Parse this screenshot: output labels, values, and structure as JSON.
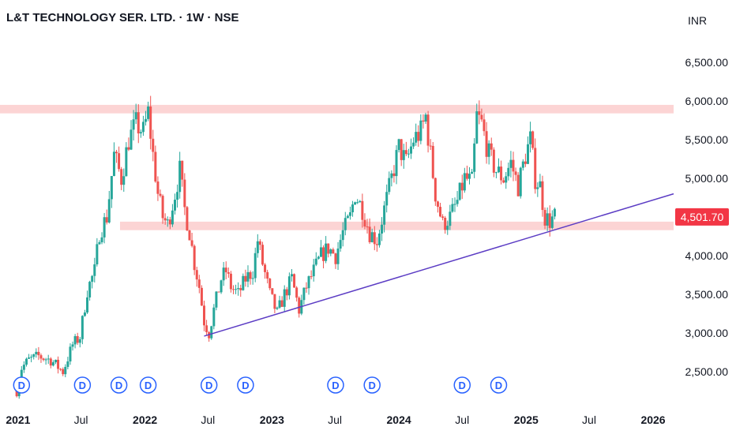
{
  "header": {
    "symbol": "L&T TECHNOLOGY SER. LTD.",
    "separator": "·",
    "interval": "1W",
    "exchange": "NSE",
    "currency": "INR"
  },
  "colors": {
    "up": "#26a69a",
    "down": "#ef5350",
    "zone": "#fcd4d4",
    "trendline": "#5b3cc4",
    "label_bg": "#f23645",
    "dividend": "#2962ff",
    "text": "#131722"
  },
  "chart_data": {
    "type": "candlestick",
    "title": "L&T TECHNOLOGY SER. LTD. · 1W · NSE",
    "x_axis": {
      "labels": [
        {
          "label": "2021",
          "date": "2021-01-01"
        },
        {
          "label": "Jul",
          "date": "2021-07-01"
        },
        {
          "label": "2022",
          "date": "2022-01-01"
        },
        {
          "label": "Jul",
          "date": "2022-07-01"
        },
        {
          "label": "2023",
          "date": "2023-01-01"
        },
        {
          "label": "Jul",
          "date": "2023-07-01"
        },
        {
          "label": "2024",
          "date": "2024-01-01"
        },
        {
          "label": "Jul",
          "date": "2024-07-01"
        },
        {
          "label": "2025",
          "date": "2025-01-01"
        },
        {
          "label": "Jul",
          "date": "2025-07-01"
        },
        {
          "label": "2026",
          "date": "2026-01-01"
        }
      ],
      "range": [
        "2020-11-10",
        "2026-03-01"
      ]
    },
    "y_axis": {
      "range": [
        2000,
        7000
      ],
      "ticks": [
        {
          "value": 2500,
          "label": "2,500.00"
        },
        {
          "value": 3000,
          "label": "3,000.00"
        },
        {
          "value": 3500,
          "label": "3,500.00"
        },
        {
          "value": 4000,
          "label": "4,000.00"
        },
        {
          "value": 4500,
          "label": "4,500.00"
        },
        {
          "value": 5000,
          "label": "5,000.00"
        },
        {
          "value": 5500,
          "label": "5,500.00"
        },
        {
          "value": 6000,
          "label": "6,000.00"
        },
        {
          "value": 6500,
          "label": "6,500.00"
        }
      ]
    },
    "price_path": [
      [
        "2020-12-28",
        2250
      ],
      [
        "2021-01-11",
        2550
      ],
      [
        "2021-02-01",
        2650
      ],
      [
        "2021-03-01",
        2700
      ],
      [
        "2021-04-05",
        2650
      ],
      [
        "2021-05-10",
        2500
      ],
      [
        "2021-06-07",
        2850
      ],
      [
        "2021-06-28",
        2950
      ],
      [
        "2021-07-19",
        3550
      ],
      [
        "2021-08-09",
        3800
      ],
      [
        "2021-08-23",
        4300
      ],
      [
        "2021-09-13",
        4500
      ],
      [
        "2021-10-04",
        5300
      ],
      [
        "2021-10-25",
        5000
      ],
      [
        "2021-11-15",
        5500
      ],
      [
        "2021-12-06",
        5700
      ],
      [
        "2021-12-27",
        5600
      ],
      [
        "2022-01-10",
        5850
      ],
      [
        "2022-01-24",
        5300
      ],
      [
        "2022-02-07",
        4800
      ],
      [
        "2022-02-21",
        4500
      ],
      [
        "2022-03-07",
        4400
      ],
      [
        "2022-03-28",
        4800
      ],
      [
        "2022-04-11",
        5100
      ],
      [
        "2022-04-25",
        4600
      ],
      [
        "2022-05-09",
        4300
      ],
      [
        "2022-05-23",
        3900
      ],
      [
        "2022-06-06",
        3600
      ],
      [
        "2022-06-20",
        3150
      ],
      [
        "2022-07-04",
        3000
      ],
      [
        "2022-07-18",
        3300
      ],
      [
        "2022-08-08",
        3700
      ],
      [
        "2022-08-22",
        3800
      ],
      [
        "2022-09-05",
        3600
      ],
      [
        "2022-09-26",
        3500
      ],
      [
        "2022-10-17",
        3700
      ],
      [
        "2022-11-07",
        3800
      ],
      [
        "2022-11-21",
        4200
      ],
      [
        "2022-12-05",
        3900
      ],
      [
        "2022-12-26",
        3500
      ],
      [
        "2023-01-16",
        3250
      ],
      [
        "2023-02-06",
        3500
      ],
      [
        "2023-02-27",
        3700
      ],
      [
        "2023-03-20",
        3300
      ],
      [
        "2023-04-10",
        3600
      ],
      [
        "2023-05-01",
        3800
      ],
      [
        "2023-05-22",
        4000
      ],
      [
        "2023-06-12",
        4100
      ],
      [
        "2023-07-03",
        4000
      ],
      [
        "2023-07-24",
        4300
      ],
      [
        "2023-08-14",
        4500
      ],
      [
        "2023-08-28",
        4800
      ],
      [
        "2023-09-18",
        4600
      ],
      [
        "2023-10-09",
        4300
      ],
      [
        "2023-10-30",
        4200
      ],
      [
        "2023-11-20",
        4600
      ],
      [
        "2023-12-11",
        5000
      ],
      [
        "2024-01-01",
        5400
      ],
      [
        "2024-01-22",
        5200
      ],
      [
        "2024-02-12",
        5500
      ],
      [
        "2024-03-04",
        5600
      ],
      [
        "2024-03-18",
        5800
      ],
      [
        "2024-04-01",
        5300
      ],
      [
        "2024-04-15",
        4800
      ],
      [
        "2024-05-06",
        4400
      ],
      [
        "2024-05-27",
        4500
      ],
      [
        "2024-06-17",
        4700
      ],
      [
        "2024-07-08",
        5000
      ],
      [
        "2024-07-29",
        4950
      ],
      [
        "2024-08-12",
        5800
      ],
      [
        "2024-08-26",
        5700
      ],
      [
        "2024-09-16",
        5300
      ],
      [
        "2024-10-07",
        5100
      ],
      [
        "2024-10-28",
        5000
      ],
      [
        "2024-11-18",
        5200
      ],
      [
        "2024-12-09",
        4900
      ],
      [
        "2024-12-30",
        5300
      ],
      [
        "2025-01-13",
        5500
      ],
      [
        "2025-01-27",
        5000
      ],
      [
        "2025-02-10",
        4900
      ],
      [
        "2025-02-24",
        4500
      ],
      [
        "2025-03-10",
        4450
      ],
      [
        "2025-03-24",
        4500
      ]
    ],
    "zones": [
      {
        "low": 5840,
        "high": 5950
      },
      {
        "low": 4330,
        "high": 4440
      }
    ],
    "trendline": {
      "start": {
        "date": "2022-06-20",
        "value": 2960
      },
      "end": {
        "date": "2026-03-01",
        "value": 4800
      }
    },
    "last_price": {
      "value": 4501.7,
      "label": "4,501.70"
    },
    "dividends": [
      {
        "date": "2021-01-11",
        "label": "D"
      },
      {
        "date": "2021-07-05",
        "label": "D"
      },
      {
        "date": "2021-10-18",
        "label": "D"
      },
      {
        "date": "2022-01-10",
        "label": "D"
      },
      {
        "date": "2022-07-04",
        "label": "D"
      },
      {
        "date": "2022-10-17",
        "label": "D"
      },
      {
        "date": "2023-07-03",
        "label": "D"
      },
      {
        "date": "2023-10-16",
        "label": "D"
      },
      {
        "date": "2024-07-01",
        "label": "D"
      },
      {
        "date": "2024-10-14",
        "label": "D"
      }
    ]
  }
}
